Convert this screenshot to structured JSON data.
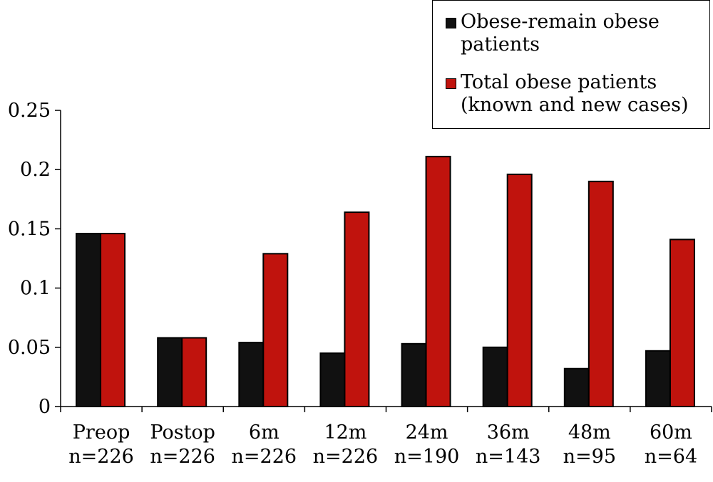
{
  "chart_data": {
    "type": "bar",
    "categories": [
      "Preop",
      "Postop",
      "6m",
      "12m",
      "24m",
      "36m",
      "48m",
      "60m"
    ],
    "sample_sizes": [
      "n=226",
      "n=226",
      "n=226",
      "n=226",
      "n=190",
      "n=143",
      "n=95",
      "n=64"
    ],
    "series": [
      {
        "name": "Obese-remain obese patients",
        "color": "#111111",
        "values": [
          0.146,
          0.058,
          0.054,
          0.045,
          0.053,
          0.05,
          0.032,
          0.047
        ]
      },
      {
        "name": "Total obese patients (known and new cases)",
        "color": "#c0130d",
        "values": [
          0.146,
          0.058,
          0.129,
          0.164,
          0.211,
          0.196,
          0.19,
          0.141
        ]
      }
    ],
    "title": "",
    "xlabel": "",
    "ylabel": "",
    "ylim": [
      0,
      0.25
    ],
    "yticks": [
      "0",
      "0.05",
      "0.1",
      "0.15",
      "0.2",
      "0.25"
    ],
    "grid": false,
    "legend_position": "top-right"
  }
}
